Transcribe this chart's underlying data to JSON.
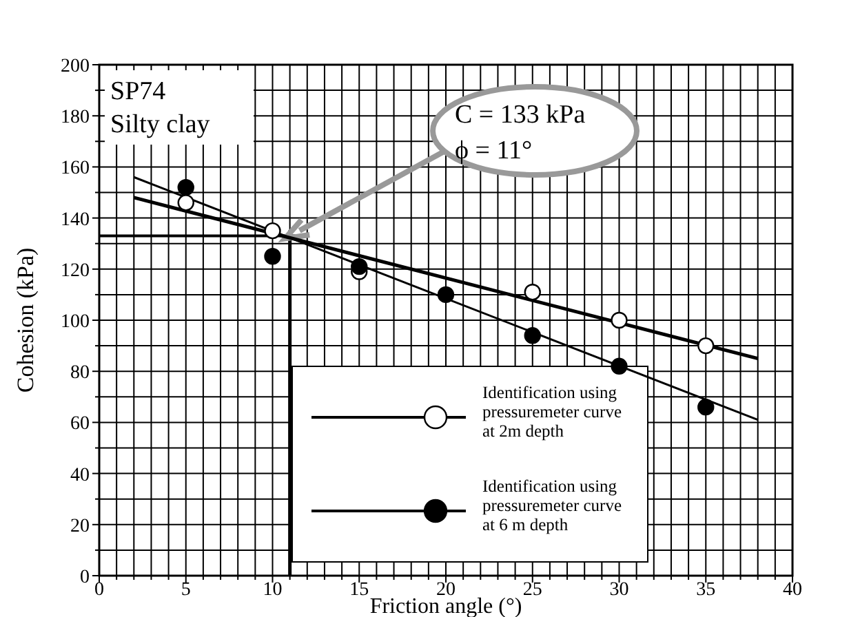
{
  "chart_data": {
    "type": "scatter",
    "xlabel": "Friction angle (°)",
    "ylabel": "Cohesion (kPa)",
    "xlim": [
      0,
      40
    ],
    "ylim": [
      0,
      200
    ],
    "xticks": [
      0,
      {
        "value": 1,
        "label": null
      },
      {
        "value": 2,
        "label": null
      },
      {
        "value": 3,
        "label": null
      },
      {
        "value": 4,
        "label": null
      },
      5,
      {
        "value": 6,
        "label": null
      },
      {
        "value": 7,
        "label": null
      },
      {
        "value": 8,
        "label": null
      },
      {
        "value": 9,
        "label": null
      },
      10,
      {
        "value": 11,
        "label": null
      },
      {
        "value": 12,
        "label": null
      },
      {
        "value": 13,
        "label": null
      },
      {
        "value": 14,
        "label": null
      },
      15,
      {
        "value": 16,
        "label": null
      },
      {
        "value": 17,
        "label": null
      },
      {
        "value": 18,
        "label": null
      },
      {
        "value": 19,
        "label": null
      },
      20,
      {
        "value": 21,
        "label": null
      },
      {
        "value": 22,
        "label": null
      },
      {
        "value": 23,
        "label": null
      },
      {
        "value": 24,
        "label": null
      },
      25,
      {
        "value": 26,
        "label": null
      },
      {
        "value": 27,
        "label": null
      },
      {
        "value": 28,
        "label": null
      },
      {
        "value": 29,
        "label": null
      },
      30,
      {
        "value": 31,
        "label": null
      },
      {
        "value": 32,
        "label": null
      },
      {
        "value": 33,
        "label": null
      },
      {
        "value": 34,
        "label": null
      },
      35,
      {
        "value": 36,
        "label": null
      },
      {
        "value": 37,
        "label": null
      },
      {
        "value": 38,
        "label": null
      },
      {
        "value": 39,
        "label": null
      },
      40
    ],
    "yticks": [
      0,
      {
        "value": 10,
        "label": null
      },
      20,
      {
        "value": 30,
        "label": null
      },
      40,
      {
        "value": 50,
        "label": null
      },
      60,
      {
        "value": 70,
        "label": null
      },
      80,
      {
        "value": 90,
        "label": null
      },
      100,
      {
        "value": 110,
        "label": null
      },
      120,
      {
        "value": 130,
        "label": null
      },
      140,
      {
        "value": 150,
        "label": null
      },
      160,
      {
        "value": 170,
        "label": null
      },
      180,
      {
        "value": 190,
        "label": null
      },
      200
    ],
    "grid": true,
    "legend": "bottom right",
    "series": [
      {
        "name": "Identification using pressuremeter curve at 2m depth",
        "marker": "circle",
        "color": "#ffffff",
        "x": [
          5,
          10,
          15,
          25,
          30,
          35
        ],
        "values": [
          146,
          135,
          119,
          111,
          100,
          90
        ]
      },
      {
        "name": "Identification using pressuremeter curve at 6 m depth",
        "marker": "circle",
        "color": "#000000",
        "x": [
          5,
          10,
          15,
          20,
          25,
          30,
          35
        ],
        "values": [
          152,
          125,
          121,
          110,
          94,
          82,
          66
        ]
      },
      {
        "type": "line",
        "color": "#000000",
        "x": [
          2,
          38
        ],
        "values": [
          148,
          85
        ]
      },
      {
        "type": "line",
        "color": "#000000",
        "x": [
          2,
          38
        ],
        "values": [
          156,
          61
        ]
      }
    ],
    "ref_lines": [
      {
        "axis": "y",
        "value": 133,
        "color": "#000000"
      },
      {
        "axis": "x",
        "value": 11,
        "color": "#000000"
      }
    ],
    "annotations": [
      "SP74",
      "Silty clay",
      {
        "text": "C = 133 kPa",
        "x": 11,
        "y": 133
      },
      "ϕ = 11°"
    ]
  }
}
